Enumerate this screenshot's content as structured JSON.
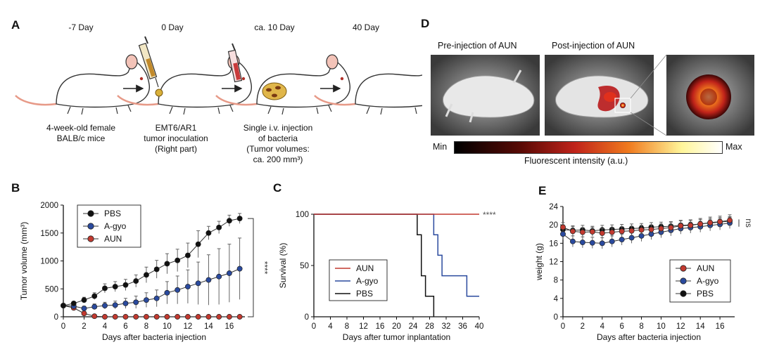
{
  "panels": {
    "A": {
      "label": "A",
      "stages": [
        "-7 Day",
        "0 Day",
        "ca. 10 Day",
        "40 Day"
      ],
      "captions": [
        [
          "4-week-old female",
          "BALB/c mice"
        ],
        [
          "EMT6/AR1",
          "tumor inoculation",
          "(Right part)"
        ],
        [
          "Single i.v. injection",
          "of bacteria",
          "(Tumor volumes:",
          "ca. 200 mm³)"
        ]
      ]
    },
    "B": {
      "label": "B"
    },
    "C": {
      "label": "C"
    },
    "D": {
      "label": "D",
      "pre_label": "Pre-injection of AUN",
      "post_label": "Post-injection of AUN",
      "scale_min": "Min",
      "scale_max": "Max",
      "scale_caption": "Fluorescent intensity (a.u.)",
      "colors": {
        "cold": "#000000",
        "mid": "#c0231a",
        "warm": "#f07a1e",
        "hot": "#fff69a",
        "white": "#ffffff"
      }
    },
    "E": {
      "label": "E"
    }
  },
  "chart_data": [
    {
      "id": "B",
      "type": "line",
      "xlabel": "Days after bacteria injection",
      "ylabel": "Tumor volume (mm³)",
      "xlim": [
        0,
        17.5
      ],
      "ylim": [
        0,
        2000
      ],
      "xticks": [
        "0",
        "2",
        "4",
        "6",
        "8",
        "10",
        "12",
        "14",
        "16"
      ],
      "yticks": [
        "0",
        "500",
        "1000",
        "1500",
        "2000"
      ],
      "legend": "top-left",
      "significance": "****",
      "x": [
        0,
        1,
        2,
        3,
        4,
        5,
        6,
        7,
        8,
        9,
        10,
        11,
        12,
        13,
        14,
        15,
        16,
        17
      ],
      "series": [
        {
          "name": "PBS",
          "color": "#111111",
          "values": [
            200,
            240,
            300,
            370,
            510,
            540,
            570,
            640,
            750,
            850,
            950,
            1010,
            1100,
            1300,
            1500,
            1600,
            1720,
            1760
          ],
          "err": [
            20,
            30,
            50,
            60,
            80,
            90,
            100,
            110,
            140,
            160,
            180,
            200,
            220,
            240,
            120,
            110,
            100,
            90
          ]
        },
        {
          "name": "A-gyo",
          "color": "#2a4a9e",
          "values": [
            200,
            190,
            150,
            180,
            200,
            210,
            240,
            260,
            300,
            330,
            430,
            480,
            540,
            600,
            660,
            720,
            780,
            860
          ],
          "err": [
            20,
            30,
            40,
            50,
            60,
            70,
            90,
            110,
            130,
            150,
            200,
            250,
            300,
            380,
            450,
            500,
            520,
            550
          ]
        },
        {
          "name": "AUN",
          "color": "#c2392f",
          "values": [
            200,
            160,
            60,
            10,
            0,
            0,
            0,
            0,
            0,
            0,
            0,
            0,
            0,
            0,
            0,
            0,
            0,
            0
          ],
          "err": [
            20,
            20,
            15,
            5,
            0,
            0,
            0,
            0,
            0,
            0,
            0,
            0,
            0,
            0,
            0,
            0,
            0,
            0
          ]
        }
      ]
    },
    {
      "id": "C",
      "type": "line",
      "xlabel": "Days after tumor inplantation",
      "ylabel": "Survival (%)",
      "xlim": [
        0,
        40
      ],
      "ylim": [
        0,
        100
      ],
      "xticks": [
        "0",
        "4",
        "8",
        "12",
        "16",
        "20",
        "24",
        "28",
        "32",
        "36",
        "40"
      ],
      "yticks": [
        "0",
        "50",
        "100"
      ],
      "legend": "center-left",
      "significance": "****",
      "series": [
        {
          "name": "AUN",
          "color": "#c2392f",
          "steps": [
            [
              0,
              100
            ],
            [
              40,
              100
            ]
          ]
        },
        {
          "name": "A-gyo",
          "color": "#2a4a9e",
          "steps": [
            [
              0,
              100
            ],
            [
              29,
              100
            ],
            [
              29,
              80
            ],
            [
              30,
              80
            ],
            [
              30,
              60
            ],
            [
              31,
              60
            ],
            [
              31,
              40
            ],
            [
              37,
              40
            ],
            [
              37,
              20
            ],
            [
              40,
              20
            ]
          ]
        },
        {
          "name": "PBS",
          "color": "#111111",
          "steps": [
            [
              0,
              100
            ],
            [
              25,
              100
            ],
            [
              25,
              80
            ],
            [
              26,
              80
            ],
            [
              26,
              40
            ],
            [
              27,
              40
            ],
            [
              27,
              20
            ],
            [
              29,
              20
            ],
            [
              29,
              0
            ]
          ]
        }
      ]
    },
    {
      "id": "E",
      "type": "line",
      "xlabel": "Days after bacteria injection",
      "ylabel": "weight (g)",
      "xlim": [
        0,
        17.5
      ],
      "ylim": [
        0,
        24
      ],
      "xticks": [
        "0",
        "2",
        "4",
        "6",
        "8",
        "10",
        "12",
        "14",
        "16"
      ],
      "yticks": [
        "0",
        "4",
        "8",
        "12",
        "16",
        "20",
        "24"
      ],
      "legend": "bottom-right",
      "significance": "ns",
      "x": [
        0,
        1,
        2,
        3,
        4,
        5,
        6,
        7,
        8,
        9,
        10,
        11,
        12,
        13,
        14,
        15,
        16,
        17
      ],
      "series": [
        {
          "name": "AUN",
          "color": "#c2392f",
          "values": [
            19.5,
            18.6,
            18.4,
            18.5,
            18.2,
            18.4,
            18.6,
            18.7,
            18.9,
            19.0,
            19.2,
            19.4,
            19.8,
            19.9,
            20.2,
            20.5,
            20.7,
            21.0
          ],
          "err": [
            1,
            1,
            1,
            1,
            1,
            1,
            1,
            1,
            1,
            1,
            1,
            1.2,
            1.2,
            1.2,
            1.2,
            1.2,
            1.2,
            1.2
          ]
        },
        {
          "name": "A-gyo",
          "color": "#2a4a9e",
          "values": [
            18.0,
            16.4,
            16.2,
            16.1,
            16.0,
            16.4,
            16.8,
            17.2,
            17.6,
            18.0,
            18.4,
            18.8,
            19.2,
            19.4,
            19.6,
            19.9,
            20.1,
            20.4
          ],
          "err": [
            1.2,
            1.2,
            1.2,
            1.2,
            1.2,
            1.2,
            1.2,
            1.2,
            1.2,
            1.2,
            1.2,
            1.2,
            1.2,
            1.2,
            1.2,
            1.2,
            1.2,
            1.2
          ]
        },
        {
          "name": "PBS",
          "color": "#111111",
          "values": [
            19.0,
            18.8,
            18.9,
            18.7,
            18.9,
            19.0,
            19.1,
            19.2,
            19.3,
            19.5,
            19.6,
            19.7,
            19.9,
            20.0,
            20.2,
            20.4,
            20.6,
            20.8
          ],
          "err": [
            1,
            1,
            1,
            1,
            1,
            1,
            1,
            1,
            1,
            1,
            1,
            1,
            1,
            1,
            1,
            1,
            1,
            1
          ]
        }
      ]
    }
  ]
}
